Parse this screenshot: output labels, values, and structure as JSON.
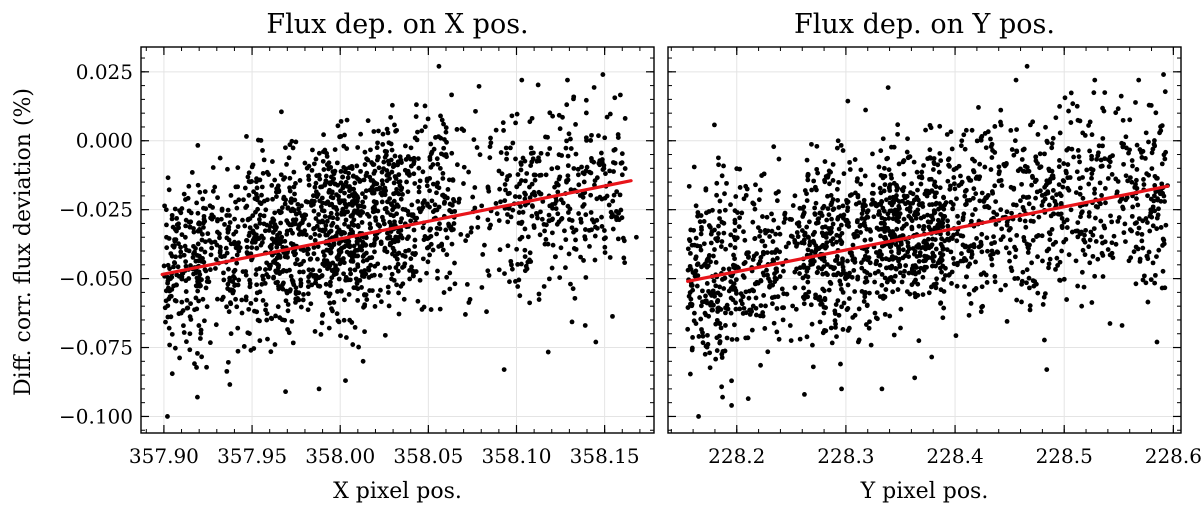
{
  "chart_data": [
    {
      "type": "scatter",
      "title": "Flux dep. on X pos.",
      "xlabel": "X pixel pos.",
      "ylabel": "Diff. corr. flux deviation (%)",
      "xlim": [
        357.887,
        358.178
      ],
      "ylim": [
        -0.106,
        0.034
      ],
      "xticks": [
        "357.90",
        "357.95",
        "358.00",
        "358.05",
        "358.10",
        "358.15"
      ],
      "yticks": [
        "0.025",
        "0.000",
        "−0.025",
        "−0.050",
        "−0.075",
        "−0.100"
      ],
      "grid": true,
      "point_color": "#000000",
      "fit_line": {
        "color": "#e8141a",
        "x": [
          357.899,
          358.165
        ],
        "y": [
          -0.0485,
          -0.0145
        ]
      },
      "clusters": [
        {
          "x": [
            357.9,
            357.92
          ],
          "y_mean": -0.046,
          "y_sd": 0.016,
          "n": 160
        },
        {
          "x": [
            357.92,
            357.945
          ],
          "y_mean": -0.042,
          "y_sd": 0.016,
          "n": 160
        },
        {
          "x": [
            357.945,
            357.975
          ],
          "y_mean": -0.037,
          "y_sd": 0.017,
          "n": 300
        },
        {
          "x": [
            357.975,
            357.99
          ],
          "y_mean": -0.035,
          "y_sd": 0.016,
          "n": 130
        },
        {
          "x": [
            357.99,
            358.015
          ],
          "y_mean": -0.031,
          "y_sd": 0.017,
          "n": 350
        },
        {
          "x": [
            358.015,
            358.04
          ],
          "y_mean": -0.027,
          "y_sd": 0.016,
          "n": 260
        },
        {
          "x": [
            358.04,
            358.065
          ],
          "y_mean": -0.025,
          "y_sd": 0.016,
          "n": 170
        },
        {
          "x": [
            358.065,
            358.09
          ],
          "y_mean": -0.024,
          "y_sd": 0.018,
          "n": 50
        },
        {
          "x": [
            358.09,
            358.125
          ],
          "y_mean": -0.022,
          "y_sd": 0.017,
          "n": 180
        },
        {
          "x": [
            358.125,
            358.162
          ],
          "y_mean": -0.018,
          "y_sd": 0.017,
          "n": 170
        }
      ],
      "extra_points": [
        [
          357.902,
          -0.1
        ],
        [
          357.919,
          -0.093
        ],
        [
          357.969,
          -0.091
        ],
        [
          357.988,
          -0.09
        ],
        [
          358.003,
          -0.087
        ],
        [
          358.013,
          -0.08
        ],
        [
          358.044,
          -0.022
        ],
        [
          358.056,
          0.027
        ],
        [
          358.093,
          -0.083
        ],
        [
          358.103,
          0.022
        ],
        [
          358.139,
          -0.067
        ],
        [
          358.145,
          -0.073
        ],
        [
          358.149,
          0.024
        ],
        [
          358.168,
          -0.035
        ],
        [
          357.937,
          -0.062
        ],
        [
          358.083,
          -0.062
        ]
      ]
    },
    {
      "type": "scatter",
      "title": "Flux dep. on Y pos.",
      "xlabel": "Y pixel pos.",
      "ylabel": "",
      "xlim": [
        228.137,
        228.607
      ],
      "ylim": [
        -0.106,
        0.034
      ],
      "xticks": [
        "228.2",
        "228.3",
        "228.4",
        "228.5",
        "228.6"
      ],
      "grid": true,
      "point_color": "#000000",
      "fit_line": {
        "color": "#e8141a",
        "x": [
          228.155,
          228.595
        ],
        "y": [
          -0.051,
          -0.0165
        ]
      },
      "clusters": [
        {
          "x": [
            228.155,
            228.2
          ],
          "y_mean": -0.048,
          "y_sd": 0.017,
          "n": 230
        },
        {
          "x": [
            228.2,
            228.26
          ],
          "y_mean": -0.045,
          "y_sd": 0.016,
          "n": 190
        },
        {
          "x": [
            228.26,
            228.33
          ],
          "y_mean": -0.039,
          "y_sd": 0.017,
          "n": 380
        },
        {
          "x": [
            228.33,
            228.39
          ],
          "y_mean": -0.032,
          "y_sd": 0.016,
          "n": 420
        },
        {
          "x": [
            228.39,
            228.43
          ],
          "y_mean": -0.028,
          "y_sd": 0.016,
          "n": 160
        },
        {
          "x": [
            228.43,
            228.5
          ],
          "y_mean": -0.026,
          "y_sd": 0.017,
          "n": 250
        },
        {
          "x": [
            228.5,
            228.595
          ],
          "y_mean": -0.02,
          "y_sd": 0.017,
          "n": 300
        }
      ],
      "extra_points": [
        [
          228.165,
          -0.1
        ],
        [
          228.187,
          -0.093
        ],
        [
          228.262,
          -0.092
        ],
        [
          228.296,
          -0.09
        ],
        [
          228.333,
          -0.09
        ],
        [
          228.363,
          -0.086
        ],
        [
          228.466,
          0.027
        ],
        [
          228.484,
          -0.083
        ],
        [
          228.528,
          0.022
        ],
        [
          228.553,
          -0.067
        ],
        [
          228.585,
          -0.073
        ],
        [
          228.591,
          0.024
        ],
        [
          228.424,
          -0.062
        ],
        [
          228.516,
          -0.06
        ]
      ]
    }
  ]
}
